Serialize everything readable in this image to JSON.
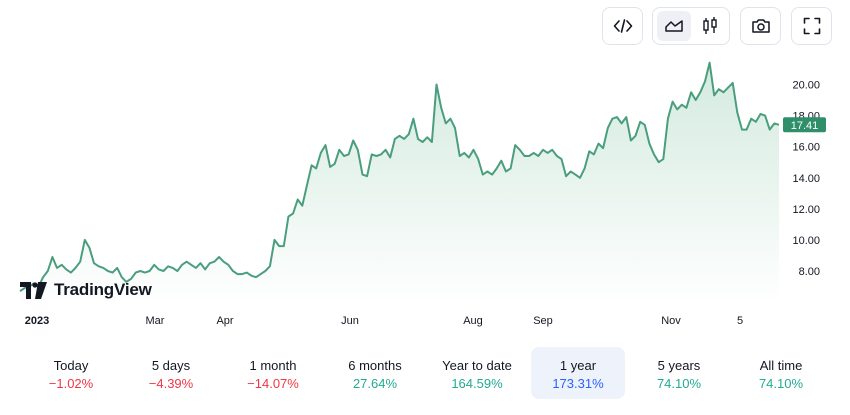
{
  "toolbar": {
    "buttons": [
      {
        "name": "embed-code-icon"
      },
      {
        "name": "area-chart-icon",
        "active": true
      },
      {
        "name": "candlestick-icon"
      },
      {
        "name": "camera-icon"
      },
      {
        "name": "fullscreen-icon"
      }
    ]
  },
  "logo": {
    "text": "TradingView"
  },
  "chart_data": {
    "type": "area",
    "title": "",
    "xlabel": "",
    "ylabel": "",
    "ylim": [
      6.5,
      21.8
    ],
    "x_tick_labels": [
      "2023",
      "Mar",
      "Apr",
      "Jun",
      "Aug",
      "Sep",
      "Nov",
      "5"
    ],
    "y_tick_labels": [
      "8.00",
      "10.00",
      "12.00",
      "14.00",
      "16.00",
      "18.00",
      "20.00"
    ],
    "y_ticks": [
      8,
      10,
      12,
      14,
      16,
      18,
      20
    ],
    "last_value_label": "17.41",
    "last_value": 17.41,
    "colors": {
      "line": "#4a9e7e",
      "fill_top": "#d3eadf",
      "fill_bottom": "#ffffff",
      "badge": "#2f8f6a"
    },
    "values": [
      6.7,
      6.9,
      7.0,
      7.2,
      7.0,
      7.6,
      8.0,
      8.9,
      8.2,
      8.4,
      8.1,
      7.9,
      8.2,
      8.6,
      10.0,
      9.5,
      8.5,
      8.3,
      8.2,
      8.0,
      7.9,
      8.2,
      7.6,
      7.3,
      7.5,
      7.9,
      8.0,
      7.9,
      8.0,
      8.4,
      8.1,
      8.0,
      8.3,
      8.2,
      8.0,
      8.4,
      8.6,
      8.4,
      8.2,
      8.5,
      8.1,
      8.5,
      8.6,
      8.9,
      8.6,
      8.4,
      8.0,
      7.8,
      7.8,
      7.9,
      7.7,
      7.6,
      7.8,
      8.0,
      8.3,
      10.0,
      9.6,
      9.6,
      11.5,
      11.7,
      12.6,
      12.2,
      13.5,
      14.8,
      14.6,
      15.6,
      16.1,
      14.7,
      14.9,
      15.8,
      15.4,
      15.5,
      16.4,
      15.8,
      14.2,
      14.1,
      15.5,
      15.4,
      15.5,
      15.8,
      15.3,
      16.5,
      16.7,
      16.5,
      16.8,
      17.8,
      16.5,
      16.3,
      16.6,
      16.3,
      20.0,
      18.5,
      17.5,
      17.8,
      17.2,
      15.4,
      15.6,
      15.3,
      15.8,
      15.2,
      14.2,
      14.4,
      14.2,
      14.6,
      15.1,
      14.4,
      14.6,
      16.1,
      15.8,
      15.4,
      15.4,
      15.6,
      15.4,
      15.8,
      15.6,
      15.8,
      15.4,
      15.2,
      14.1,
      14.4,
      14.2,
      14.0,
      14.6,
      15.7,
      15.5,
      16.2,
      15.9,
      17.2,
      17.8,
      17.9,
      17.5,
      17.9,
      16.4,
      16.7,
      17.6,
      17.4,
      16.2,
      15.5,
      15.0,
      15.2,
      17.8,
      18.9,
      18.4,
      18.7,
      18.5,
      19.5,
      19.0,
      19.5,
      20.2,
      21.4,
      19.3,
      19.7,
      19.5,
      19.8,
      20.1,
      18.2,
      17.1,
      17.1,
      17.8,
      17.6,
      18.1,
      18.0,
      17.1,
      17.5,
      17.41
    ]
  },
  "periods": [
    {
      "label": "Today",
      "value": "−1.02%",
      "sign": "neg"
    },
    {
      "label": "5 days",
      "value": "−4.39%",
      "sign": "neg"
    },
    {
      "label": "1 month",
      "value": "−14.07%",
      "sign": "neg"
    },
    {
      "label": "6 months",
      "value": "27.64%",
      "sign": "pos"
    },
    {
      "label": "Year to date",
      "value": "164.59%",
      "sign": "pos"
    },
    {
      "label": "1 year",
      "value": "173.31%",
      "sign": "pos",
      "active": true
    },
    {
      "label": "5 years",
      "value": "74.10%",
      "sign": "pos"
    },
    {
      "label": "All time",
      "value": "74.10%",
      "sign": "pos"
    }
  ]
}
